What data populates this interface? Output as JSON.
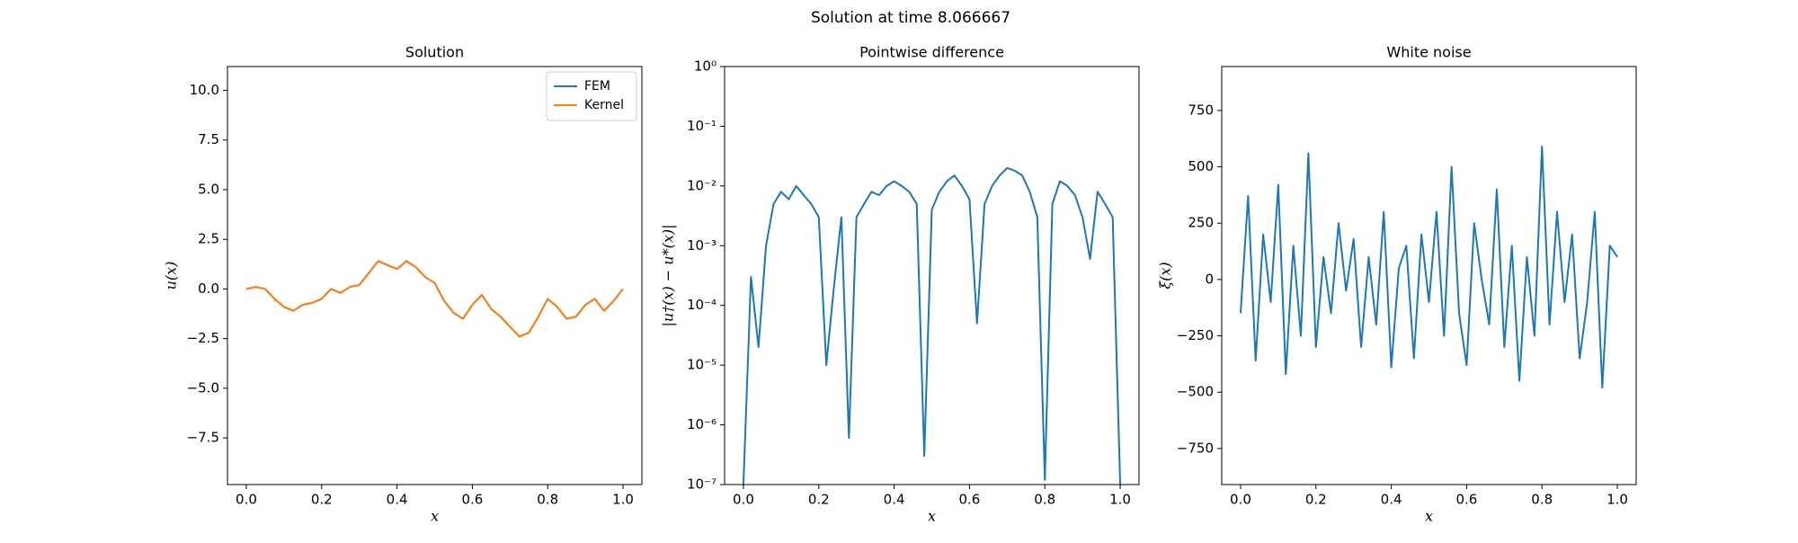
{
  "title": "Solution at time 8.066667",
  "chart_data": [
    {
      "type": "line",
      "title": "Solution",
      "xlabel": "x",
      "ylabel": "u(x)",
      "x": [
        0,
        0.025,
        0.05,
        0.075,
        0.1,
        0.125,
        0.15,
        0.175,
        0.2,
        0.225,
        0.25,
        0.275,
        0.3,
        0.325,
        0.35,
        0.375,
        0.4,
        0.425,
        0.45,
        0.475,
        0.5,
        0.525,
        0.55,
        0.575,
        0.6,
        0.625,
        0.65,
        0.675,
        0.7,
        0.725,
        0.75,
        0.775,
        0.8,
        0.825,
        0.85,
        0.875,
        0.9,
        0.925,
        0.95,
        0.975,
        1.0
      ],
      "series": [
        {
          "name": "FEM",
          "color": "#1f77b4",
          "values": [
            0,
            0.1,
            0.0,
            -0.5,
            -0.9,
            -1.1,
            -0.8,
            -0.7,
            -0.5,
            0.0,
            -0.2,
            0.1,
            0.2,
            0.8,
            1.4,
            1.2,
            1.0,
            1.4,
            1.1,
            0.6,
            0.3,
            -0.6,
            -1.2,
            -1.5,
            -0.8,
            -0.3,
            -1.0,
            -1.4,
            -1.9,
            -2.4,
            -2.2,
            -1.4,
            -0.5,
            -0.9,
            -1.5,
            -1.4,
            -0.8,
            -0.5,
            -1.1,
            -0.6,
            0.0
          ]
        },
        {
          "name": "Kernel",
          "color": "#ff7f0e",
          "values": [
            0,
            0.1,
            0.0,
            -0.5,
            -0.9,
            -1.1,
            -0.8,
            -0.7,
            -0.5,
            0.0,
            -0.2,
            0.1,
            0.2,
            0.8,
            1.4,
            1.2,
            1.0,
            1.4,
            1.1,
            0.6,
            0.3,
            -0.6,
            -1.2,
            -1.5,
            -0.8,
            -0.3,
            -1.0,
            -1.4,
            -1.9,
            -2.4,
            -2.2,
            -1.4,
            -0.5,
            -0.9,
            -1.5,
            -1.4,
            -0.8,
            -0.5,
            -1.1,
            -0.6,
            0.0
          ]
        }
      ],
      "xlim": [
        -0.05,
        1.05
      ],
      "ylim": [
        -9.85,
        11.2
      ],
      "xticks": [
        {
          "value": 0,
          "label": "0.0"
        },
        0.2,
        0.4,
        0.6,
        0.8,
        {
          "value": 1,
          "label": "1.0"
        }
      ],
      "yticks": [
        {
          "value": -7.5,
          "label": "−7.5"
        },
        {
          "value": -5,
          "label": "−5.0"
        },
        {
          "value": -2.5,
          "label": "−2.5"
        },
        {
          "value": 0,
          "label": "0.0"
        },
        2.5,
        {
          "value": 5,
          "label": "5.0"
        },
        7.5,
        {
          "value": 10,
          "label": "10.0"
        }
      ],
      "legend": "upper right"
    },
    {
      "type": "line",
      "title": "Pointwise difference",
      "xlabel": "x",
      "ylabel": "|u†(x) − u*(x)|",
      "yscale": "log",
      "x": [
        0,
        0.02,
        0.04,
        0.06,
        0.08,
        0.1,
        0.12,
        0.14,
        0.16,
        0.18,
        0.2,
        0.22,
        0.24,
        0.26,
        0.28,
        0.3,
        0.32,
        0.34,
        0.36,
        0.38,
        0.4,
        0.42,
        0.44,
        0.46,
        0.48,
        0.5,
        0.52,
        0.54,
        0.56,
        0.58,
        0.6,
        0.62,
        0.64,
        0.66,
        0.68,
        0.7,
        0.72,
        0.74,
        0.76,
        0.78,
        0.8,
        0.82,
        0.84,
        0.86,
        0.88,
        0.9,
        0.92,
        0.94,
        0.96,
        0.98,
        1.0
      ],
      "series": [
        {
          "color": "#1f77b4",
          "values": [
            1e-07,
            0.0003,
            2e-05,
            0.001,
            0.005,
            0.008,
            0.006,
            0.01,
            0.007,
            0.005,
            0.003,
            1e-05,
            0.0002,
            0.003,
            6e-07,
            0.003,
            0.005,
            0.008,
            0.007,
            0.01,
            0.012,
            0.01,
            0.008,
            0.005,
            3e-07,
            0.004,
            0.008,
            0.012,
            0.015,
            0.01,
            0.006,
            5e-05,
            0.005,
            0.01,
            0.015,
            0.02,
            0.018,
            0.015,
            0.008,
            0.003,
            1.2e-07,
            0.005,
            0.012,
            0.01,
            0.007,
            0.003,
            0.0006,
            0.008,
            0.005,
            0.003,
            1e-07
          ]
        }
      ],
      "xlim": [
        -0.05,
        1.05
      ],
      "ylim": [
        1e-07,
        1
      ],
      "xticks": [
        {
          "value": 0,
          "label": "0.0"
        },
        0.2,
        0.4,
        0.6,
        0.8,
        {
          "value": 1,
          "label": "1.0"
        }
      ],
      "yticks": [
        {
          "value": 1e-07,
          "label": "10⁻⁷"
        },
        {
          "value": 1e-06,
          "label": "10⁻⁶"
        },
        {
          "value": 1e-05,
          "label": "10⁻⁵"
        },
        {
          "value": 0.0001,
          "label": "10⁻⁴"
        },
        {
          "value": 0.001,
          "label": "10⁻³"
        },
        {
          "value": 0.01,
          "label": "10⁻²"
        },
        {
          "value": 0.1,
          "label": "10⁻¹"
        },
        {
          "value": 1,
          "label": "10⁰"
        }
      ]
    },
    {
      "type": "line",
      "title": "White noise",
      "xlabel": "x",
      "ylabel": "ξ(x)",
      "x": [
        0,
        0.02,
        0.04,
        0.06,
        0.08,
        0.1,
        0.12,
        0.14,
        0.16,
        0.18,
        0.2,
        0.22,
        0.24,
        0.26,
        0.28,
        0.3,
        0.32,
        0.34,
        0.36,
        0.38,
        0.4,
        0.42,
        0.44,
        0.46,
        0.48,
        0.5,
        0.52,
        0.54,
        0.56,
        0.58,
        0.6,
        0.62,
        0.64,
        0.66,
        0.68,
        0.7,
        0.72,
        0.74,
        0.76,
        0.78,
        0.8,
        0.82,
        0.84,
        0.86,
        0.88,
        0.9,
        0.92,
        0.94,
        0.96,
        0.98,
        1.0
      ],
      "series": [
        {
          "color": "#1f77b4",
          "values": [
            -150,
            370,
            -360,
            200,
            -100,
            420,
            -420,
            150,
            -250,
            560,
            -300,
            100,
            -150,
            250,
            -50,
            180,
            -300,
            100,
            -200,
            300,
            -390,
            50,
            150,
            -350,
            200,
            -100,
            300,
            -250,
            500,
            -150,
            -380,
            250,
            0,
            -200,
            400,
            -300,
            150,
            -450,
            100,
            -250,
            590,
            -200,
            300,
            -100,
            200,
            -350,
            -100,
            300,
            -480,
            150,
            100
          ]
        }
      ],
      "xlim": [
        -0.05,
        1.05
      ],
      "ylim": [
        -910,
        945
      ],
      "xticks": [
        {
          "value": 0,
          "label": "0.0"
        },
        0.2,
        0.4,
        0.6,
        0.8,
        {
          "value": 1,
          "label": "1.0"
        }
      ],
      "yticks": [
        {
          "value": -750,
          "label": "−750"
        },
        {
          "value": -500,
          "label": "−500"
        },
        {
          "value": -250,
          "label": "−250"
        },
        0,
        250,
        500,
        750
      ]
    }
  ]
}
